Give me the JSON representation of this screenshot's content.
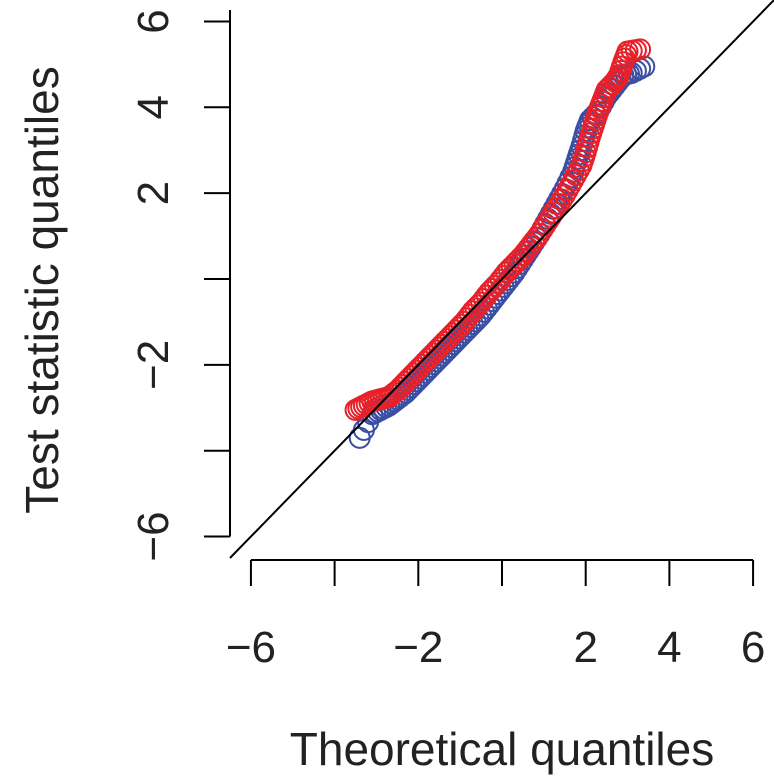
{
  "chart_data": {
    "type": "scatter",
    "xlabel": "Theoretical quantiles",
    "ylabel": "Test statistic quantiles",
    "xlim": [
      -6.5,
      6.5
    ],
    "ylim": [
      -6.5,
      6.5
    ],
    "x_ticks": [
      -6,
      -4,
      -2,
      0,
      2,
      4,
      6
    ],
    "x_tick_labels": [
      "−6",
      "",
      "−2",
      "",
      "2",
      "4",
      "6"
    ],
    "y_ticks": [
      -6,
      -4,
      -2,
      0,
      2,
      4,
      6
    ],
    "y_tick_labels": [
      "−6",
      "",
      "−2",
      "",
      "2",
      "4",
      "6"
    ],
    "reference_line": {
      "slope": 1,
      "intercept": 0
    },
    "grid": false,
    "legend": "none",
    "colors": {
      "axis": "#000000",
      "line": "#000000"
    },
    "series": [
      {
        "color": "#3a4fa3",
        "points": [
          [
            -3.4,
            -3.7
          ],
          [
            -3.1,
            -3.15
          ],
          [
            -2.9,
            -3.05
          ],
          [
            -2.7,
            -2.95
          ],
          [
            -2.5,
            -2.8
          ],
          [
            -2.3,
            -2.65
          ],
          [
            -2.1,
            -2.45
          ],
          [
            -1.9,
            -2.25
          ],
          [
            -1.7,
            -2.05
          ],
          [
            -1.5,
            -1.85
          ],
          [
            -1.3,
            -1.65
          ],
          [
            -1.1,
            -1.45
          ],
          [
            -0.9,
            -1.25
          ],
          [
            -0.7,
            -1.05
          ],
          [
            -0.5,
            -0.85
          ],
          [
            -0.3,
            -0.6
          ],
          [
            -0.1,
            -0.35
          ],
          [
            0.1,
            -0.1
          ],
          [
            0.3,
            0.15
          ],
          [
            0.5,
            0.45
          ],
          [
            0.7,
            0.75
          ],
          [
            0.9,
            1.05
          ],
          [
            1.1,
            1.4
          ],
          [
            1.3,
            1.75
          ],
          [
            1.5,
            2.1
          ],
          [
            1.7,
            2.5
          ],
          [
            1.8,
            2.8
          ],
          [
            1.9,
            3.1
          ],
          [
            2.0,
            3.45
          ],
          [
            2.1,
            3.7
          ],
          [
            2.3,
            3.9
          ],
          [
            2.5,
            4.25
          ],
          [
            2.7,
            4.5
          ],
          [
            2.9,
            4.75
          ],
          [
            3.1,
            4.8
          ],
          [
            3.4,
            4.95
          ]
        ]
      },
      {
        "color": "#e8202a",
        "points": [
          [
            -3.5,
            -3.05
          ],
          [
            -3.3,
            -2.95
          ],
          [
            -3.1,
            -2.85
          ],
          [
            -2.9,
            -2.8
          ],
          [
            -2.7,
            -2.75
          ],
          [
            -2.5,
            -2.6
          ],
          [
            -2.3,
            -2.4
          ],
          [
            -2.1,
            -2.2
          ],
          [
            -1.9,
            -2.0
          ],
          [
            -1.7,
            -1.8
          ],
          [
            -1.5,
            -1.6
          ],
          [
            -1.3,
            -1.4
          ],
          [
            -1.1,
            -1.2
          ],
          [
            -0.9,
            -1.0
          ],
          [
            -0.7,
            -0.75
          ],
          [
            -0.5,
            -0.55
          ],
          [
            -0.3,
            -0.3
          ],
          [
            -0.1,
            -0.1
          ],
          [
            0.1,
            0.15
          ],
          [
            0.3,
            0.35
          ],
          [
            0.5,
            0.55
          ],
          [
            0.7,
            0.8
          ],
          [
            0.9,
            1.05
          ],
          [
            1.1,
            1.35
          ],
          [
            1.3,
            1.65
          ],
          [
            1.5,
            1.95
          ],
          [
            1.7,
            2.3
          ],
          [
            1.9,
            2.65
          ],
          [
            2.0,
            2.95
          ],
          [
            2.1,
            3.3
          ],
          [
            2.2,
            3.6
          ],
          [
            2.3,
            3.9
          ],
          [
            2.4,
            4.15
          ],
          [
            2.5,
            4.4
          ],
          [
            2.7,
            4.6
          ],
          [
            2.8,
            4.75
          ],
          [
            2.9,
            5.05
          ],
          [
            3.0,
            5.3
          ],
          [
            3.3,
            5.35
          ]
        ]
      }
    ]
  }
}
